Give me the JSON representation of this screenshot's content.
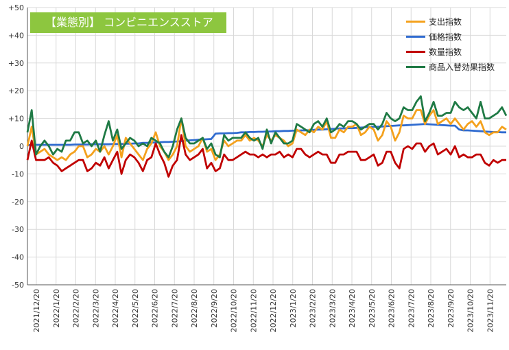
{
  "chart_data": {
    "type": "line",
    "title": "【業態別】 コンビニエンスストア",
    "xlabel": "",
    "ylabel": "",
    "ylim": [
      -50,
      50
    ],
    "yticks": [
      50,
      40,
      30,
      20,
      10,
      0,
      -10,
      -20,
      -30,
      -40,
      -50
    ],
    "ytick_labels": [
      "+50",
      "+40",
      "+30",
      "+20",
      "+10",
      "0",
      "-10",
      "-20",
      "-30",
      "-40",
      "-50"
    ],
    "x_tick_labels": [
      "2021/12/20",
      "2022/1/20",
      "2022/2/20",
      "2022/3/20",
      "2022/4/20",
      "2022/5/20",
      "2022/6/20",
      "2022/7/20",
      "2022/8/20",
      "2022/9/20",
      "2022/10/20",
      "2022/11/20",
      "2022/12/20",
      "2023/1/20",
      "2023/2/20",
      "2023/3/20",
      "2023/4/20",
      "2023/5/20",
      "2023/6/20",
      "2023/7/20",
      "2023/8/20",
      "2023/9/20",
      "2023/10/20",
      "2023/11/20"
    ],
    "grid": true,
    "legend_position": "top-right",
    "series": [
      {
        "name": "支出指数",
        "color": "#f4a11d",
        "values": [
          0,
          7,
          -3,
          -2,
          -1,
          -3,
          -4,
          -5,
          -4,
          -5,
          -3,
          -2,
          0,
          0,
          -4,
          -3,
          -1,
          -2,
          0,
          -3,
          0,
          4,
          -4,
          3,
          1,
          -1,
          -3,
          -5,
          -1,
          1,
          5,
          0,
          -2,
          -5,
          -3,
          0,
          10,
          0,
          -2,
          -1,
          0,
          3,
          -2,
          -1,
          -5,
          -3,
          2,
          0,
          1,
          2,
          2,
          4,
          2,
          3,
          2,
          0,
          4,
          2,
          4,
          3,
          2,
          0,
          1,
          6,
          5,
          4,
          6,
          5,
          7,
          6,
          9,
          3,
          3,
          6,
          5,
          7,
          7,
          8,
          4,
          5,
          7,
          6,
          2,
          4,
          9,
          7,
          2,
          5,
          11,
          10,
          10,
          13,
          13,
          8,
          11,
          13,
          8,
          9,
          10,
          8,
          10,
          8,
          6,
          8,
          9,
          7,
          9,
          5,
          4,
          5,
          5,
          7,
          6
        ]
      },
      {
        "name": "価格指数",
        "color": "#2f6bd0",
        "values": [
          0.4,
          0.4,
          0.5,
          0.5,
          0.5,
          0.5,
          0.5,
          0.5,
          0.5,
          0.5,
          0.5,
          0.6,
          0.6,
          0.6,
          0.6,
          0.7,
          0.7,
          0.7,
          0.7,
          0.7,
          0.8,
          0.8,
          0.8,
          0.9,
          0.9,
          1,
          1,
          1.2,
          1.2,
          1.3,
          1.3,
          1.4,
          1.5,
          1.5,
          1.6,
          1.7,
          1.8,
          2,
          2.1,
          2.2,
          2.3,
          2.4,
          2.5,
          2.6,
          4.5,
          4.6,
          4.6,
          4.7,
          4.7,
          4.8,
          5,
          5,
          5.1,
          5.1,
          5.2,
          5.2,
          5.3,
          5.3,
          5.4,
          5.4,
          5.5,
          5.5,
          5.6,
          5.6,
          5.7,
          5.7,
          5.8,
          5.9,
          6,
          6,
          6.1,
          6.2,
          6.3,
          6.4,
          6.4,
          6.5,
          6.5,
          6.6,
          6.7,
          6.8,
          6.9,
          7,
          7,
          7.1,
          7.2,
          7.3,
          7.4,
          7.5,
          7.5,
          7.6,
          7.7,
          7.8,
          7.9,
          8,
          7.9,
          7.8,
          7.7,
          7.6,
          7.5,
          7.4,
          7.4,
          6,
          5.7,
          5.7,
          5.6,
          5.5,
          5.4,
          5.3,
          5.2,
          5.1,
          5.1,
          5,
          5
        ]
      },
      {
        "name": "数量指数",
        "color": "#c00000",
        "values": [
          -5,
          2,
          -5,
          -5,
          -5,
          -4,
          -6,
          -7,
          -9,
          -8,
          -7,
          -6,
          -5,
          -5,
          -9,
          -8,
          -6,
          -7,
          -4,
          -8,
          -5,
          -2,
          -10,
          -5,
          -3,
          -4,
          -6,
          -9,
          -5,
          -4,
          1,
          -3,
          -6,
          -11,
          -7,
          -5,
          4,
          -3,
          -5,
          -4,
          -3,
          -1,
          -8,
          -6,
          -9,
          -8,
          -3,
          -5,
          -5,
          -4,
          -3,
          -2,
          -3,
          -3,
          -4,
          -3,
          -4,
          -3,
          -3,
          -2,
          -4,
          -3,
          -4,
          -1,
          -1,
          -3,
          -4,
          -3,
          -2,
          -3,
          -3,
          -6,
          -6,
          -3,
          -3,
          -2,
          -2,
          -2,
          -5,
          -5,
          -4,
          -3,
          -7,
          -6,
          -2,
          -2,
          -6,
          -8,
          -1,
          0,
          -1,
          1,
          1,
          -2,
          0,
          1,
          -3,
          -2,
          -1,
          -3,
          0,
          -4,
          -3,
          -4,
          -4,
          -3,
          -3,
          -6,
          -7,
          -5,
          -6,
          -5,
          -5
        ]
      },
      {
        "name": "商品入替効果指数",
        "color": "#1f7a45",
        "values": [
          5,
          13,
          -3,
          0,
          2,
          0,
          -3,
          -1,
          -2,
          2,
          2,
          5,
          5,
          1,
          2,
          0,
          2,
          -2,
          4,
          9,
          2,
          6,
          -1,
          1,
          3,
          2,
          0,
          1,
          0,
          3,
          2,
          1,
          -2,
          -4,
          0,
          6,
          10,
          3,
          1,
          1,
          2,
          3,
          -1,
          1,
          -3,
          -4,
          4,
          2,
          3,
          3,
          3,
          5,
          3,
          2,
          3,
          -1,
          6,
          1,
          5,
          3,
          1,
          1,
          2,
          8,
          7,
          6,
          5,
          8,
          9,
          7,
          10,
          5,
          6,
          8,
          7,
          9,
          9,
          8,
          6,
          7,
          8,
          8,
          6,
          8,
          12,
          10,
          9,
          10,
          14,
          13,
          13,
          16,
          18,
          9,
          12,
          16,
          11,
          11,
          12,
          12,
          16,
          14,
          13,
          14,
          12,
          10,
          16,
          10,
          10,
          11,
          12,
          14,
          11
        ]
      }
    ]
  }
}
